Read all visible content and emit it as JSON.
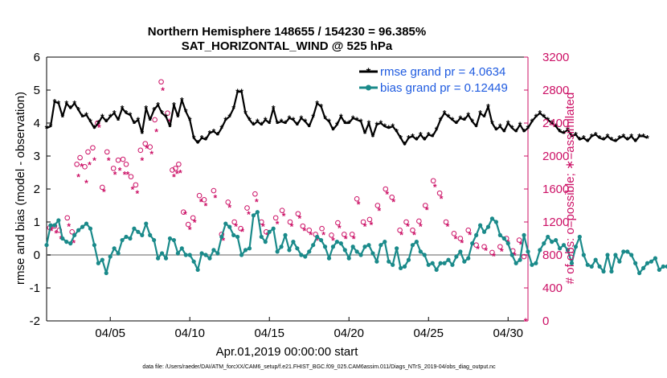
{
  "chart_data": {
    "type": "line",
    "title": "Northern Hemisphere 148655 / 154230 = 96.385%",
    "subtitle": "SAT_HORIZONTAL_WIND @ 525 hPa",
    "xlabel": "Apr.01,2019 00:00:00 start",
    "ylabel": "rmse and bias (model - observation)",
    "ylabel_right": "# of obs: o=possible; ∗=assimilated",
    "xlim": [
      1,
      31.25
    ],
    "ylim": [
      -2,
      6
    ],
    "ylim_right": [
      0,
      3200
    ],
    "x_tick_values": [
      5,
      10,
      15,
      20,
      25,
      30
    ],
    "x_ticks": [
      "04/05",
      "04/10",
      "04/15",
      "04/20",
      "04/25",
      "04/30"
    ],
    "y_ticks": [
      -2,
      -1,
      0,
      1,
      2,
      3,
      4,
      5,
      6
    ],
    "y_ticks_right": [
      0,
      400,
      800,
      1200,
      1600,
      2000,
      2400,
      2800,
      3200
    ],
    "zero_line": 0,
    "footnote": "data file: /Users/raeder/DAI/ATM_forcXX/CAM6_setup/f.e21.FHIST_BGC.f09_025.CAM6assim.011/Diags_NTrS_2019-04/obs_diag_output.nc",
    "colors": {
      "rmse": "#000000",
      "bias": "#1a8a8a",
      "obs": "#cc1166",
      "zero": "#b0b0b0",
      "legend_text": "#1f5be0"
    },
    "series": [
      {
        "name": "rmse grand pr = 4.0634",
        "marker": "asterisk",
        "values": [
          3.85,
          3.9,
          4.65,
          4.6,
          4.2,
          4.6,
          4.45,
          4.6,
          4.4,
          4.2,
          4.25,
          4.05,
          3.85,
          4.0,
          4.2,
          4.05,
          4.2,
          4.3,
          4.1,
          4.45,
          4.3,
          4.25,
          4.0,
          4.1,
          3.7,
          4.45,
          4.1,
          4.4,
          4.55,
          4.3,
          4.2,
          3.9,
          4.55,
          4.2,
          4.7,
          4.35,
          4.1,
          3.55,
          3.4,
          3.55,
          3.5,
          3.7,
          3.75,
          3.65,
          3.85,
          4.1,
          4.2,
          4.45,
          4.95,
          4.95,
          4.3,
          4.1,
          3.95,
          4.05,
          3.95,
          4.1,
          4.0,
          4.45,
          4.0,
          4.05,
          4.0,
          4.15,
          4.1,
          3.95,
          4.15,
          4.05,
          3.9,
          4.2,
          4.6,
          4.5,
          4.15,
          4.05,
          3.8,
          3.95,
          4.2,
          4.0,
          4.0,
          4.15,
          4.1,
          4.05,
          3.7,
          4.0,
          3.6,
          3.95,
          4.0,
          3.9,
          3.85,
          3.9,
          3.75,
          3.55,
          3.35,
          3.55,
          3.6,
          3.5,
          3.65,
          3.5,
          3.65,
          3.6,
          3.8,
          4.1,
          4.3,
          4.2,
          4.1,
          4.0,
          4.15,
          4.1,
          4.25,
          4.05,
          3.9,
          4.3,
          4.2,
          4.5,
          4.0,
          3.8,
          3.9,
          3.75,
          4.0,
          3.85,
          3.75,
          3.95,
          3.75,
          3.85,
          4.05,
          4.2,
          4.3,
          4.2,
          4.1,
          4.0,
          3.9,
          3.75,
          3.7,
          3.8,
          3.6,
          3.65,
          3.5,
          3.55,
          3.45,
          3.6,
          3.65,
          3.55,
          3.5,
          3.6,
          3.5,
          3.45,
          3.55,
          3.6,
          3.5,
          3.6,
          3.45,
          3.6,
          3.6,
          3.55
        ]
      },
      {
        "name": "bias grand pr = 0.12449",
        "marker": "circle",
        "values": [
          0.3,
          0.9,
          0.9,
          1.05,
          0.5,
          0.4,
          0.35,
          0.6,
          0.75,
          0.85,
          0.95,
          0.8,
          0.3,
          -0.25,
          -0.15,
          -0.55,
          -0.05,
          0.2,
          0.05,
          0.45,
          0.55,
          0.5,
          0.8,
          0.7,
          0.6,
          0.95,
          0.6,
          0.45,
          -0.1,
          0.05,
          -0.1,
          0.5,
          0.45,
          0.05,
          0.2,
          0.0,
          0.0,
          -0.2,
          -0.45,
          0.05,
          0.0,
          -0.1,
          0.15,
          0.05,
          0.55,
          0.95,
          0.85,
          0.6,
          0.55,
          0.0,
          0.15,
          0.2,
          1.2,
          1.3,
          0.55,
          0.4,
          0.7,
          0.8,
          0.1,
          0.25,
          0.6,
          0.15,
          0.4,
          0.2,
          0.0,
          -0.05,
          0.1,
          0.3,
          0.55,
          0.45,
          0.25,
          -0.1,
          0.25,
          0.4,
          0.35,
          0.15,
          -0.1,
          0.25,
          0.1,
          0.0,
          0.25,
          0.3,
          0.05,
          -0.2,
          0.3,
          0.4,
          -0.2,
          -0.3,
          0.2,
          -0.4,
          -0.35,
          -0.15,
          0.3,
          0.4,
          0.1,
          0.0,
          -0.3,
          -0.25,
          -0.45,
          -0.25,
          -0.25,
          -0.15,
          -0.3,
          -0.05,
          0.1,
          -0.2,
          -0.1,
          0.35,
          0.6,
          0.9,
          0.7,
          0.85,
          1.1,
          1.0,
          0.6,
          0.5,
          0.35,
          0.0,
          -0.25,
          -0.15,
          0.6,
          0.1,
          -0.3,
          -0.25,
          0.15,
          0.35,
          0.55,
          0.4,
          0.45,
          0.2,
          0.3,
          0.15,
          -0.25,
          0.25,
          0.55,
          0.0,
          -0.3,
          -0.35,
          -0.15,
          -0.35,
          -0.5,
          0.0,
          -0.5,
          0.0,
          -0.2,
          0.1,
          0.1,
          0.0,
          -0.25,
          -0.55,
          -0.4,
          -0.25,
          -0.2,
          -0.1,
          -0.45,
          -0.35,
          -0.35,
          -0.2,
          0.05,
          0.1,
          -0.2,
          -0.1,
          -0.05,
          -0.55,
          -0.35
        ]
      }
    ],
    "obs_possible": [
      {
        "x": 1.2,
        "y": 1130
      },
      {
        "x": 1.5,
        "y": 1150
      },
      {
        "x": 1.8,
        "y": 1100
      },
      {
        "x": 2.3,
        "y": 1250
      },
      {
        "x": 2.6,
        "y": 1080
      },
      {
        "x": 2.9,
        "y": 1900
      },
      {
        "x": 3.1,
        "y": 1980
      },
      {
        "x": 3.4,
        "y": 1870
      },
      {
        "x": 3.6,
        "y": 2050
      },
      {
        "x": 3.9,
        "y": 2100
      },
      {
        "x": 4.2,
        "y": 2400
      },
      {
        "x": 4.5,
        "y": 1620
      },
      {
        "x": 4.8,
        "y": 2050
      },
      {
        "x": 5.2,
        "y": 1850
      },
      {
        "x": 5.5,
        "y": 1950
      },
      {
        "x": 5.8,
        "y": 1960
      },
      {
        "x": 6.0,
        "y": 1900
      },
      {
        "x": 6.3,
        "y": 1750
      },
      {
        "x": 6.6,
        "y": 1650
      },
      {
        "x": 6.9,
        "y": 2070
      },
      {
        "x": 7.2,
        "y": 2150
      },
      {
        "x": 7.5,
        "y": 2110
      },
      {
        "x": 7.8,
        "y": 2440
      },
      {
        "x": 8.2,
        "y": 2900
      },
      {
        "x": 8.6,
        "y": 2520
      },
      {
        "x": 8.9,
        "y": 1830
      },
      {
        "x": 9.1,
        "y": 1850
      },
      {
        "x": 9.3,
        "y": 1900
      },
      {
        "x": 9.6,
        "y": 1320
      },
      {
        "x": 9.9,
        "y": 1170
      },
      {
        "x": 10.2,
        "y": 1250
      },
      {
        "x": 10.6,
        "y": 1520
      },
      {
        "x": 10.9,
        "y": 1470
      },
      {
        "x": 11.5,
        "y": 1580
      },
      {
        "x": 12.0,
        "y": 1050
      },
      {
        "x": 12.4,
        "y": 1440
      },
      {
        "x": 12.8,
        "y": 1200
      },
      {
        "x": 13.2,
        "y": 1120
      },
      {
        "x": 13.6,
        "y": 1370
      },
      {
        "x": 14.1,
        "y": 1540
      },
      {
        "x": 14.5,
        "y": 1200
      },
      {
        "x": 14.8,
        "y": 1080
      },
      {
        "x": 15.4,
        "y": 1250
      },
      {
        "x": 15.8,
        "y": 1340
      },
      {
        "x": 16.3,
        "y": 1200
      },
      {
        "x": 16.8,
        "y": 1300
      },
      {
        "x": 17.1,
        "y": 1150
      },
      {
        "x": 17.5,
        "y": 1100
      },
      {
        "x": 17.9,
        "y": 1050
      },
      {
        "x": 18.3,
        "y": 1120
      },
      {
        "x": 18.9,
        "y": 1040
      },
      {
        "x": 19.3,
        "y": 1190
      },
      {
        "x": 19.7,
        "y": 1050
      },
      {
        "x": 20.2,
        "y": 1050
      },
      {
        "x": 20.5,
        "y": 1480
      },
      {
        "x": 20.9,
        "y": 1200
      },
      {
        "x": 21.3,
        "y": 1230
      },
      {
        "x": 21.8,
        "y": 1400
      },
      {
        "x": 22.3,
        "y": 1600
      },
      {
        "x": 22.7,
        "y": 1500
      },
      {
        "x": 23.2,
        "y": 1100
      },
      {
        "x": 23.6,
        "y": 1200
      },
      {
        "x": 24.0,
        "y": 1100
      },
      {
        "x": 24.4,
        "y": 1210
      },
      {
        "x": 24.8,
        "y": 1400
      },
      {
        "x": 25.3,
        "y": 1700
      },
      {
        "x": 25.7,
        "y": 1550
      },
      {
        "x": 26.1,
        "y": 1200
      },
      {
        "x": 26.6,
        "y": 1060
      },
      {
        "x": 27.0,
        "y": 1000
      },
      {
        "x": 27.5,
        "y": 1100
      },
      {
        "x": 28.0,
        "y": 920
      },
      {
        "x": 28.5,
        "y": 900
      },
      {
        "x": 29.0,
        "y": 830
      },
      {
        "x": 29.5,
        "y": 900
      },
      {
        "x": 29.9,
        "y": 1000
      },
      {
        "x": 30.3,
        "y": 850
      },
      {
        "x": 30.7,
        "y": 980
      },
      {
        "x": 31.0,
        "y": 780
      }
    ],
    "obs_assimilated": [
      {
        "x": 1.3,
        "y": 1100
      },
      {
        "x": 1.6,
        "y": 1070
      },
      {
        "x": 1.9,
        "y": 1000
      },
      {
        "x": 2.4,
        "y": 1150
      },
      {
        "x": 2.7,
        "y": 950
      },
      {
        "x": 3.0,
        "y": 1750
      },
      {
        "x": 3.2,
        "y": 1880
      },
      {
        "x": 3.5,
        "y": 1680
      },
      {
        "x": 3.7,
        "y": 1900
      },
      {
        "x": 4.0,
        "y": 1950
      },
      {
        "x": 4.3,
        "y": 2350
      },
      {
        "x": 4.6,
        "y": 1570
      },
      {
        "x": 4.9,
        "y": 1950
      },
      {
        "x": 5.3,
        "y": 1780
      },
      {
        "x": 5.6,
        "y": 1830
      },
      {
        "x": 5.9,
        "y": 1780
      },
      {
        "x": 6.1,
        "y": 1780
      },
      {
        "x": 6.4,
        "y": 1600
      },
      {
        "x": 6.7,
        "y": 1550
      },
      {
        "x": 7.0,
        "y": 1950
      },
      {
        "x": 7.3,
        "y": 2100
      },
      {
        "x": 7.6,
        "y": 2030
      },
      {
        "x": 7.9,
        "y": 2300
      },
      {
        "x": 8.3,
        "y": 2800
      },
      {
        "x": 8.7,
        "y": 2420
      },
      {
        "x": 9.0,
        "y": 1750
      },
      {
        "x": 9.2,
        "y": 1790
      },
      {
        "x": 9.4,
        "y": 1800
      },
      {
        "x": 9.7,
        "y": 1300
      },
      {
        "x": 10.0,
        "y": 1110
      },
      {
        "x": 10.3,
        "y": 1200
      },
      {
        "x": 10.7,
        "y": 1450
      },
      {
        "x": 11.0,
        "y": 1400
      },
      {
        "x": 11.6,
        "y": 1500
      },
      {
        "x": 12.1,
        "y": 980
      },
      {
        "x": 12.5,
        "y": 1380
      },
      {
        "x": 12.9,
        "y": 1150
      },
      {
        "x": 13.3,
        "y": 1090
      },
      {
        "x": 13.7,
        "y": 1300
      },
      {
        "x": 14.2,
        "y": 1450
      },
      {
        "x": 14.6,
        "y": 1150
      },
      {
        "x": 14.9,
        "y": 1050
      },
      {
        "x": 15.5,
        "y": 1180
      },
      {
        "x": 15.9,
        "y": 1280
      },
      {
        "x": 16.4,
        "y": 1150
      },
      {
        "x": 16.9,
        "y": 1250
      },
      {
        "x": 17.2,
        "y": 1100
      },
      {
        "x": 17.6,
        "y": 1050
      },
      {
        "x": 18.0,
        "y": 980
      },
      {
        "x": 18.4,
        "y": 1050
      },
      {
        "x": 19.0,
        "y": 980
      },
      {
        "x": 19.4,
        "y": 1130
      },
      {
        "x": 19.8,
        "y": 1000
      },
      {
        "x": 20.3,
        "y": 1000
      },
      {
        "x": 20.6,
        "y": 1420
      },
      {
        "x": 21.0,
        "y": 1150
      },
      {
        "x": 21.4,
        "y": 1170
      },
      {
        "x": 21.9,
        "y": 1340
      },
      {
        "x": 22.4,
        "y": 1540
      },
      {
        "x": 22.8,
        "y": 1450
      },
      {
        "x": 23.3,
        "y": 1050
      },
      {
        "x": 23.7,
        "y": 1150
      },
      {
        "x": 24.1,
        "y": 1050
      },
      {
        "x": 24.5,
        "y": 1150
      },
      {
        "x": 24.9,
        "y": 1350
      },
      {
        "x": 25.4,
        "y": 1630
      },
      {
        "x": 25.8,
        "y": 1490
      },
      {
        "x": 26.2,
        "y": 1150
      },
      {
        "x": 26.7,
        "y": 1000
      },
      {
        "x": 27.1,
        "y": 950
      },
      {
        "x": 27.6,
        "y": 1050
      },
      {
        "x": 28.1,
        "y": 880
      },
      {
        "x": 28.6,
        "y": 860
      },
      {
        "x": 29.1,
        "y": 790
      },
      {
        "x": 29.6,
        "y": 850
      },
      {
        "x": 30.0,
        "y": 950
      },
      {
        "x": 30.4,
        "y": 800
      },
      {
        "x": 30.8,
        "y": 930
      },
      {
        "x": 31.1,
        "y": 0
      }
    ]
  }
}
